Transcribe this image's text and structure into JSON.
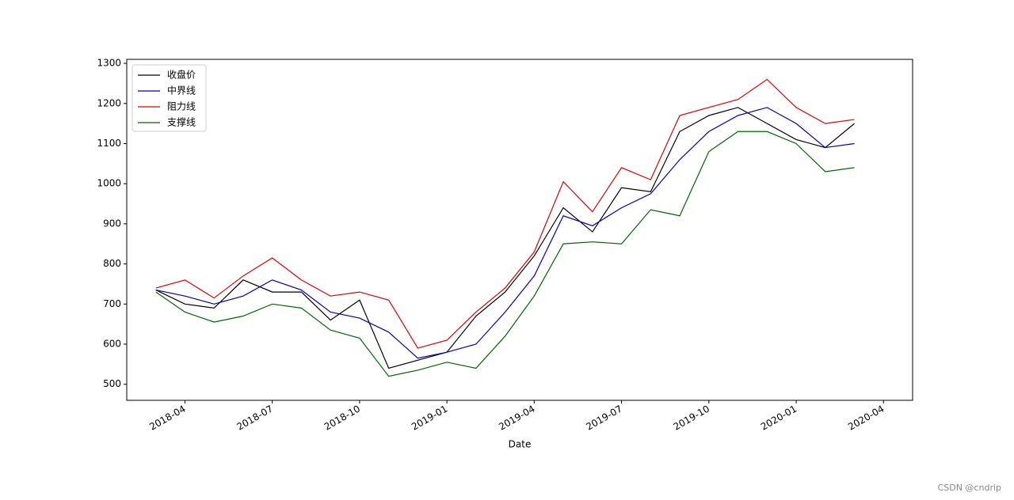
{
  "chart_data": {
    "type": "line",
    "x": [
      "2018-03",
      "2018-04",
      "2018-05",
      "2018-06",
      "2018-07",
      "2018-08",
      "2018-09",
      "2018-10",
      "2018-11",
      "2018-12",
      "2019-01",
      "2019-02",
      "2019-03",
      "2019-04",
      "2019-05",
      "2019-06",
      "2019-07",
      "2019-08",
      "2019-09",
      "2019-10",
      "2019-11",
      "2019-12",
      "2020-01",
      "2020-02",
      "2020-03"
    ],
    "series": [
      {
        "name": "收盘价",
        "color": "#000000",
        "values": [
          735,
          700,
          690,
          760,
          730,
          730,
          660,
          710,
          540,
          560,
          580,
          670,
          730,
          820,
          940,
          880,
          990,
          980,
          1130,
          1170,
          1190,
          1150,
          1110,
          1090,
          1150
        ]
      },
      {
        "name": "中界线",
        "color": "#0000bb",
        "values": [
          735,
          720,
          700,
          720,
          760,
          735,
          680,
          665,
          630,
          565,
          580,
          600,
          680,
          770,
          920,
          895,
          940,
          975,
          1060,
          1130,
          1170,
          1190,
          1150,
          1090,
          1100
        ]
      },
      {
        "name": "阻力线",
        "color": "#dd0000",
        "values": [
          740,
          760,
          715,
          770,
          815,
          760,
          720,
          730,
          710,
          590,
          610,
          680,
          740,
          830,
          1005,
          930,
          1040,
          1010,
          1170,
          1190,
          1210,
          1260,
          1190,
          1150,
          1160
        ]
      },
      {
        "name": "支撑线",
        "color": "#006600",
        "values": [
          730,
          680,
          655,
          670,
          700,
          690,
          635,
          615,
          520,
          535,
          555,
          540,
          620,
          720,
          850,
          855,
          850,
          935,
          920,
          1080,
          1130,
          1130,
          1100,
          1030,
          1040
        ]
      }
    ],
    "xlabel": "Date",
    "xlim": [
      "2018-02",
      "2020-05"
    ],
    "xticks": [
      "2018-04",
      "2018-07",
      "2018-10",
      "2019-01",
      "2019-04",
      "2019-07",
      "2019-10",
      "2020-01",
      "2020-04"
    ],
    "ylim": [
      460,
      1310
    ],
    "yticks": [
      500,
      600,
      700,
      800,
      900,
      1000,
      1100,
      1200,
      1300
    ],
    "legend": "upper left",
    "watermark": "CSDN @cndrip"
  }
}
